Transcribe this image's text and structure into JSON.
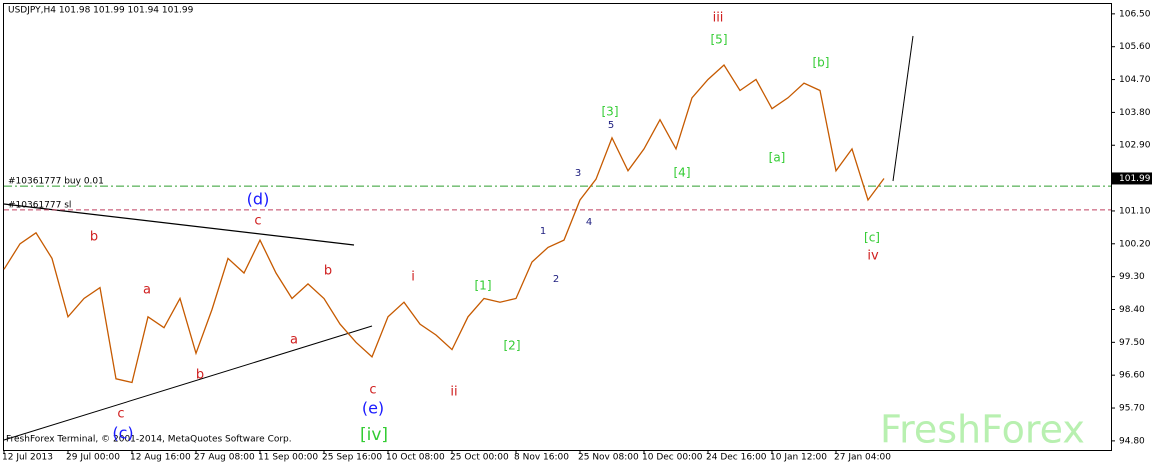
{
  "chart_data": {
    "type": "line",
    "title": "USDJPY,H4  101.98 101.99 101.94 101.99",
    "categories": [
      "12 Jul 2013",
      null,
      null,
      null,
      "29 Jul 00:00",
      null,
      null,
      null,
      "12 Aug 16:00",
      null,
      null,
      null,
      "27 Aug 08:00",
      null,
      null,
      null,
      "11 Sep 00:00",
      null,
      null,
      null,
      "25 Sep 16:00",
      null,
      null,
      null,
      "10 Oct 08:00",
      null,
      null,
      null,
      "25 Oct 00:00",
      null,
      null,
      null,
      "8 Nov 16:00",
      null,
      null,
      null,
      "25 Nov 08:00",
      null,
      null,
      null,
      "10 Dec 00:00",
      null,
      null,
      null,
      "24 Dec 16:00",
      null,
      null,
      null,
      "10 Jan 12:00",
      null,
      null,
      null,
      "27 Jan 04:00",
      null,
      null,
      null
    ],
    "values": [
      99.5,
      100.2,
      100.5,
      99.8,
      98.2,
      98.7,
      99.0,
      96.5,
      96.4,
      98.2,
      97.9,
      98.7,
      97.2,
      98.4,
      99.8,
      99.4,
      100.3,
      99.4,
      98.7,
      99.1,
      98.7,
      98.0,
      97.5,
      97.1,
      98.2,
      98.6,
      98.0,
      97.7,
      97.3,
      98.2,
      98.7,
      98.6,
      98.7,
      99.7,
      100.1,
      100.3,
      101.4,
      101.97,
      103.1,
      102.2,
      102.8,
      103.6,
      102.8,
      104.2,
      104.7,
      105.1,
      104.4,
      104.7,
      103.9,
      104.2,
      104.6,
      104.4,
      102.2,
      102.8,
      101.4,
      101.99
    ],
    "color": "#c65a00",
    "ylim": [
      94.55,
      106.77
    ],
    "yticks": [
      {
        "value": 94.8,
        "label": "94.80"
      },
      {
        "value": 95.7,
        "label": "95.70"
      },
      {
        "value": 96.6,
        "label": "96.60"
      },
      {
        "value": 97.5,
        "label": "97.50"
      },
      {
        "value": 98.4,
        "label": "98.40"
      },
      {
        "value": 99.3,
        "label": "99.30"
      },
      {
        "value": 100.2,
        "label": "100.20"
      },
      {
        "value": 101.1,
        "label": "101.10"
      },
      {
        "value": 102.9,
        "label": "102.90"
      },
      {
        "value": 103.8,
        "label": "103.80"
      },
      {
        "value": 104.7,
        "label": "104.70"
      },
      {
        "value": 105.6,
        "label": "105.60"
      },
      {
        "value": 106.5,
        "label": "106.50"
      }
    ],
    "price_label": {
      "value": 101.99,
      "label": "101.99"
    },
    "levels": [
      {
        "label": "#10361777 buy 0.01",
        "value": 101.78,
        "color": "#2e9e2e"
      },
      {
        "label": "#10361777 sl",
        "value": 101.13,
        "color": "#c04060"
      }
    ],
    "annotations": [
      {
        "text": "(d)",
        "color": "#1a1aff"
      },
      {
        "text": "c",
        "color": "#d02020"
      },
      {
        "text": "b",
        "color": "#d02020"
      },
      {
        "text": "a",
        "color": "#d02020"
      },
      {
        "text": "c",
        "color": "#d02020"
      },
      {
        "text": "(c)",
        "color": "#1a1aff"
      },
      {
        "text": "b",
        "color": "#d02020"
      },
      {
        "text": "a",
        "color": "#d02020"
      },
      {
        "text": "b",
        "color": "#d02020"
      },
      {
        "text": "c",
        "color": "#d02020"
      },
      {
        "text": "(e)",
        "color": "#1a1aff"
      },
      {
        "text": "[iv]",
        "color": "#33cc33"
      },
      {
        "text": "i",
        "color": "#d02020"
      },
      {
        "text": "ii",
        "color": "#d02020"
      },
      {
        "text": "[1]",
        "color": "#33cc33"
      },
      {
        "text": "[2]",
        "color": "#33cc33"
      },
      {
        "text": "1",
        "color": "#202080"
      },
      {
        "text": "2",
        "color": "#202080"
      },
      {
        "text": "3",
        "color": "#202080"
      },
      {
        "text": "4",
        "color": "#202080"
      },
      {
        "text": "5",
        "color": "#202080"
      },
      {
        "text": "[3]",
        "color": "#33cc33"
      },
      {
        "text": "[4]",
        "color": "#33cc33"
      },
      {
        "text": "[5]",
        "color": "#33cc33"
      },
      {
        "text": "iii",
        "color": "#d02020"
      },
      {
        "text": "[a]",
        "color": "#33cc33"
      },
      {
        "text": "[b]",
        "color": "#33cc33"
      },
      {
        "text": "[c]",
        "color": "#33cc33"
      },
      {
        "text": "iv",
        "color": "#d02020"
      }
    ],
    "copyright": "FreshForex Terminal, © 2001-2014, MetaQuotes Software Corp.",
    "watermark": "FreshForex"
  }
}
